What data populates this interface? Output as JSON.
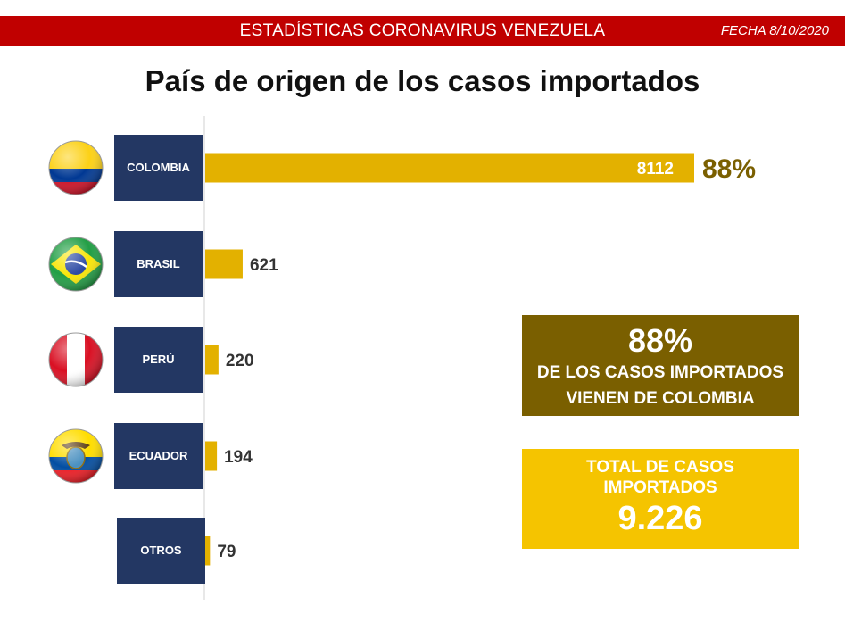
{
  "header": {
    "title": "ESTADÍSTICAS CORONAVIRUS VENEZUELA",
    "date": "FECHA 8/10/2020"
  },
  "colors": {
    "header_bg": "#c00000",
    "label_bg": "#233763",
    "bar": "#e3b100",
    "highlight_text": "#7a5f00",
    "box_dark": "#7a5f00",
    "box_gold": "#f5c400"
  },
  "chart_data": {
    "type": "bar",
    "orientation": "horizontal",
    "title": "País de origen de los casos importados",
    "categories": [
      "COLOMBIA",
      "BRASIL",
      "PERÚ",
      "ECUADOR",
      "OTROS"
    ],
    "values": [
      8112,
      621,
      220,
      194,
      79
    ],
    "value_labels": [
      "8112",
      "621",
      "220",
      "194",
      "79"
    ],
    "flags": [
      "colombia-flag",
      "brazil-flag",
      "peru-flag",
      "ecuador-flag",
      ""
    ],
    "annotations": [
      {
        "category": "COLOMBIA",
        "text": "88%"
      }
    ],
    "xlim": [
      0,
      8112
    ],
    "grid": false
  },
  "callouts": {
    "share": {
      "value": "88%",
      "line1": "DE LOS CASOS IMPORTADOS",
      "line2": "VIENEN DE COLOMBIA"
    },
    "total": {
      "line1": "TOTAL DE CASOS",
      "line2": "IMPORTADOS",
      "value": "9.226"
    }
  }
}
